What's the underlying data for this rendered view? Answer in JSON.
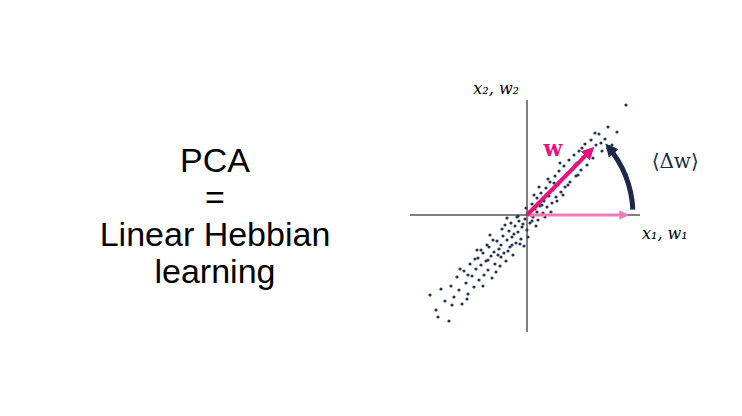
{
  "chart_data": {
    "type": "scatter",
    "title": [
      "PCA",
      "=",
      "Linear Hebbian",
      "learning"
    ],
    "x_label": "x₁, w₁",
    "y_label": "x₂, w₂",
    "color": "#27345a",
    "tick_labels": false,
    "xlim": [
      -11.7,
      11.3
    ],
    "ylim": [
      -11.7,
      11.5
    ],
    "x": [
      -9.7,
      -9.1,
      -8.6,
      -7.8,
      -8.2,
      -7.6,
      -7.3,
      -7.0,
      -6.8,
      -6.5,
      -6.3,
      -6.1,
      -5.9,
      -5.7,
      -5.5,
      -5.3,
      -5.1,
      -4.9,
      -4.8,
      -4.6,
      -4.4,
      -4.3,
      -4.1,
      -3.9,
      -3.8,
      -3.6,
      -3.5,
      -3.3,
      -3.2,
      -3.0,
      -2.9,
      -2.7,
      -2.6,
      -2.4,
      -2.3,
      -2.1,
      -2.0,
      -1.8,
      -1.7,
      -1.5,
      -1.4,
      -1.2,
      -1.1,
      -0.9,
      -0.8,
      -0.6,
      -0.5,
      -0.3,
      -0.2,
      0.0,
      0.2,
      0.3,
      0.5,
      0.6,
      0.8,
      1.0,
      1.1,
      1.3,
      1.4,
      1.6,
      1.7,
      1.9,
      2.0,
      2.2,
      2.3,
      2.5,
      2.6,
      2.8,
      2.9,
      3.1,
      3.2,
      3.4,
      3.5,
      3.7,
      3.8,
      4.0,
      4.2,
      4.3,
      4.5,
      4.7,
      4.9,
      5.0,
      5.2,
      5.4,
      5.6,
      5.8,
      6.0,
      6.2,
      6.4,
      6.6,
      6.9,
      7.2,
      7.5,
      7.8,
      8.1,
      8.5,
      9.0,
      9.9,
      -1.0,
      -2.5,
      -3.4,
      -1.9,
      -0.4,
      -2.8,
      -4.0,
      -3.1,
      -1.3,
      -0.7,
      -2.2,
      -4.6,
      -5.2,
      -5.9,
      -3.7,
      -2.0,
      -1.6,
      0.4,
      0.9,
      1.5,
      -0.1,
      0.7,
      1.2,
      2.4,
      1.8,
      3.0,
      3.6,
      2.7,
      -6.7,
      -7.5,
      -8.9,
      -6.0,
      -4.4,
      -5.0,
      -3.9,
      -2.6,
      -1.5,
      0.1,
      0.5,
      1.0,
      -0.9,
      4.1,
      4.8,
      5.5,
      6.3,
      5.1,
      3.3,
      2.1,
      6.8,
      7.4
    ],
    "values": [
      -8.0,
      -9.5,
      -7.4,
      -10.6,
      -8.6,
      -7.1,
      -8.2,
      -6.2,
      -7.5,
      -8.9,
      -5.6,
      -6.8,
      -7.9,
      -4.9,
      -6.1,
      -7.2,
      -5.4,
      -4.3,
      -6.5,
      -5.0,
      -3.8,
      -6.0,
      -4.6,
      -5.5,
      -3.2,
      -4.1,
      -6.3,
      -3.7,
      -4.9,
      -2.6,
      -4.0,
      -5.1,
      -3.0,
      -2.1,
      -3.8,
      -4.6,
      -2.5,
      -1.6,
      -3.2,
      -2.2,
      -4.0,
      -1.1,
      -2.8,
      -1.7,
      -0.6,
      -2.4,
      -1.2,
      -3.1,
      -0.4,
      -1.5,
      0.3,
      -0.8,
      1.1,
      -0.2,
      0.6,
      1.7,
      -0.5,
      0.9,
      2.2,
      0.2,
      1.4,
      2.7,
      0.8,
      1.9,
      3.3,
      1.2,
      2.5,
      3.9,
      1.8,
      3.0,
      4.4,
      2.3,
      3.6,
      4.9,
      2.8,
      4.1,
      5.5,
      3.3,
      4.6,
      6.0,
      3.9,
      5.2,
      6.4,
      4.5,
      5.8,
      7.1,
      5.0,
      6.4,
      7.5,
      5.7,
      7.0,
      8.1,
      6.4,
      7.6,
      8.8,
      7.0,
      8.3,
      11.0,
      -0.2,
      -1.4,
      -2.5,
      -3.6,
      -0.9,
      -3.4,
      -3.0,
      -5.7,
      -1.9,
      -2.9,
      -1.0,
      -3.5,
      -4.4,
      -6.0,
      -2.0,
      -0.3,
      -0.8,
      0.0,
      -1.1,
      1.0,
      0.7,
      2.0,
      2.8,
      0.3,
      -0.2,
      1.4,
      2.0,
      3.2,
      -5.4,
      -9.0,
      -10.2,
      -8.4,
      -7.1,
      -3.5,
      -4.5,
      -4.2,
      -3.0,
      -2.2,
      -0.6,
      0.3,
      -0.1,
      3.0,
      5.0,
      6.7,
      6.0,
      4.0,
      5.2,
      3.6,
      8.2,
      7.2
    ],
    "annotations": [
      {
        "type": "vector",
        "label": "w",
        "x": 7.1,
        "y": 7.2,
        "color": "#e8127c"
      },
      {
        "type": "vector",
        "x": 10.6,
        "y": 0,
        "color": "#f07ab5"
      },
      {
        "type": "arc",
        "label": "⟨Δw⟩",
        "color": "#1b2a48"
      }
    ]
  }
}
